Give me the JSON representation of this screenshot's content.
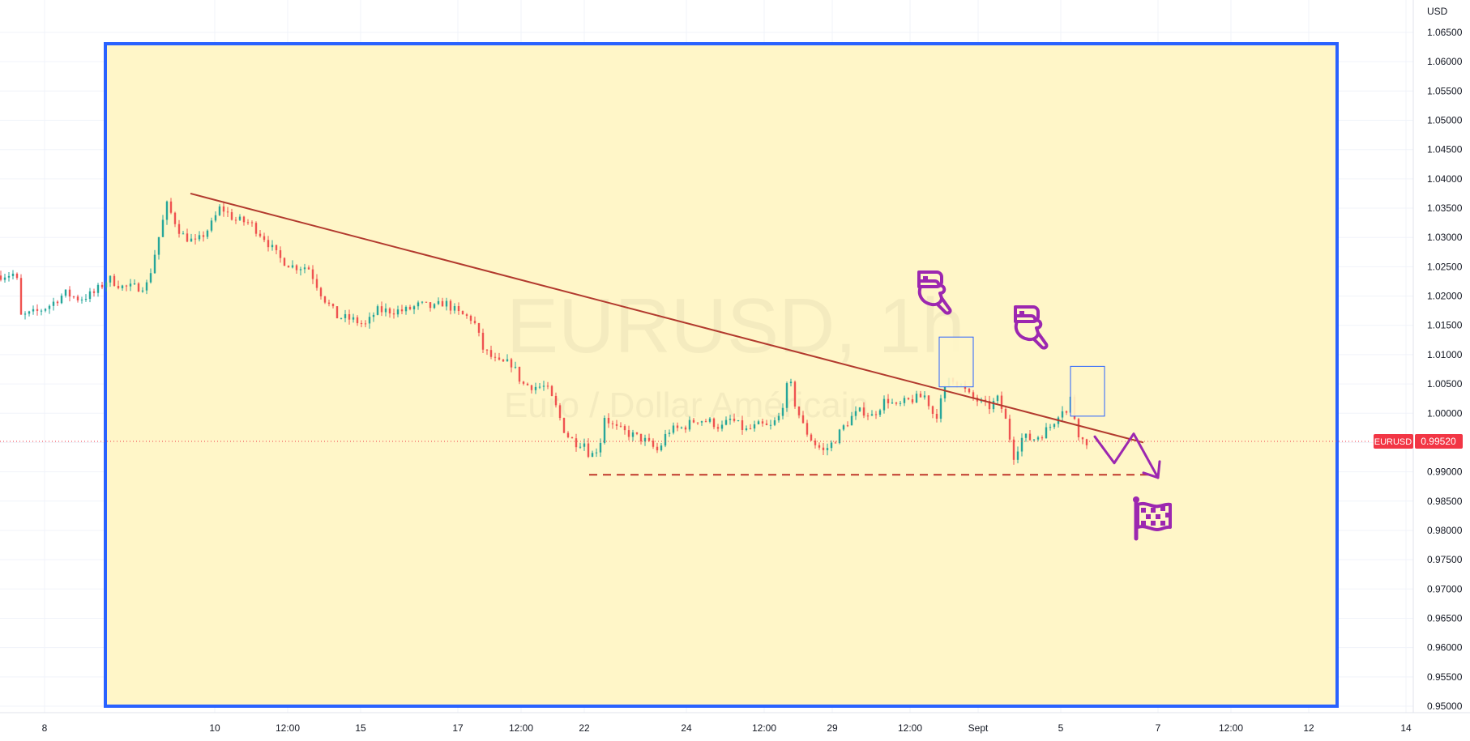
{
  "chart_data": {
    "type": "candlestick",
    "symbol": "EURUSD",
    "interval": "1h",
    "watermark": {
      "symbol_interval": "EURUSD, 1h",
      "description": "Euro / Dollar Américain"
    },
    "currency": "USD",
    "price_axis": {
      "ylim": [
        0.9475,
        1.0675
      ],
      "ticks": [
        "1.06500",
        "1.06000",
        "1.05500",
        "1.05000",
        "1.04500",
        "1.04000",
        "1.03500",
        "1.03000",
        "1.02500",
        "1.02000",
        "1.01500",
        "1.01000",
        "1.00500",
        "1.00000",
        "0.99500",
        "0.99000",
        "0.98500",
        "0.98000",
        "0.97500",
        "0.97000",
        "0.96500",
        "0.96000",
        "0.95500",
        "0.95000"
      ],
      "tick_values": [
        1.065,
        1.06,
        1.055,
        1.05,
        1.045,
        1.04,
        1.035,
        1.03,
        1.025,
        1.02,
        1.015,
        1.01,
        1.005,
        1.0,
        0.995,
        0.99,
        0.985,
        0.98,
        0.975,
        0.97,
        0.965,
        0.96,
        0.955,
        0.95
      ]
    },
    "time_axis": {
      "xlim": [
        7.55,
        14.1
      ],
      "ticks": [
        {
          "label": "8",
          "t": 8.0
        },
        {
          "label": "10",
          "t": 9.75
        },
        {
          "label": "12:00",
          "t": 10.5
        },
        {
          "label": "15",
          "t": 11.25
        },
        {
          "label": "17",
          "t": 12.25
        },
        {
          "label": "12:00",
          "t": 12.9
        },
        {
          "label": "22",
          "t": 13.55
        },
        {
          "label": "24",
          "t": 14.6
        },
        {
          "label": "12:00",
          "t": 15.4
        },
        {
          "label": "29",
          "t": 16.1
        },
        {
          "label": "12:00",
          "t": 16.9
        },
        {
          "label": "Sept",
          "t": 17.6
        },
        {
          "label": "5",
          "t": 18.45
        },
        {
          "label": "7",
          "t": 19.45
        },
        {
          "label": "12:00",
          "t": 20.2
        },
        {
          "label": "12",
          "t": 21.0
        },
        {
          "label": "14",
          "t": 22.0
        }
      ]
    },
    "last_price": {
      "label": "EURUSD",
      "value": "0.99520",
      "price": 0.9952
    },
    "price_path": [
      [
        7.55,
        1.0235
      ],
      [
        7.75,
        1.0238
      ],
      [
        7.8,
        1.0165
      ],
      [
        7.95,
        1.0172
      ],
      [
        8.1,
        1.0185
      ],
      [
        8.25,
        1.0205
      ],
      [
        8.4,
        1.0195
      ],
      [
        8.55,
        1.0205
      ],
      [
        8.7,
        1.023
      ],
      [
        8.85,
        1.0215
      ],
      [
        9.0,
        1.0215
      ],
      [
        9.1,
        1.022
      ],
      [
        9.2,
        1.029
      ],
      [
        9.3,
        1.0355
      ],
      [
        9.45,
        1.0305
      ],
      [
        9.6,
        1.029
      ],
      [
        9.75,
        1.032
      ],
      [
        9.85,
        1.0352
      ],
      [
        10.0,
        1.033
      ],
      [
        10.15,
        1.0325
      ],
      [
        10.3,
        1.03
      ],
      [
        10.45,
        1.0265
      ],
      [
        10.6,
        1.025
      ],
      [
        10.75,
        1.025
      ],
      [
        10.9,
        1.02
      ],
      [
        11.05,
        1.0165
      ],
      [
        11.2,
        1.016
      ],
      [
        11.35,
        1.015
      ],
      [
        11.45,
        1.0175
      ],
      [
        11.6,
        1.0175
      ],
      [
        11.75,
        1.0175
      ],
      [
        11.9,
        1.0185
      ],
      [
        12.05,
        1.018
      ],
      [
        12.15,
        1.019
      ],
      [
        12.3,
        1.017
      ],
      [
        12.45,
        1.016
      ],
      [
        12.55,
        1.011
      ],
      [
        12.7,
        1.0085
      ],
      [
        12.85,
        1.0085
      ],
      [
        12.95,
        1.005
      ],
      [
        13.1,
        1.0045
      ],
      [
        13.2,
        1.0045
      ],
      [
        13.3,
        1.001
      ],
      [
        13.4,
        0.9965
      ],
      [
        13.5,
        0.995
      ],
      [
        13.6,
        0.995
      ],
      [
        13.65,
        0.9925
      ],
      [
        13.75,
        0.9945
      ],
      [
        13.8,
        0.9995
      ],
      [
        13.9,
        0.9975
      ],
      [
        14.05,
        0.9965
      ],
      [
        14.2,
        0.9955
      ],
      [
        14.35,
        0.9935
      ],
      [
        14.45,
        0.997
      ],
      [
        14.6,
        0.9975
      ],
      [
        14.75,
        0.999
      ],
      [
        14.9,
        0.9985
      ],
      [
        15.0,
        0.9975
      ],
      [
        15.1,
        0.999
      ],
      [
        15.25,
        0.997
      ],
      [
        15.4,
        0.998
      ],
      [
        15.5,
        0.9975
      ],
      [
        15.6,
        0.9995
      ],
      [
        15.7,
        1.006
      ],
      [
        15.75,
        1.002
      ],
      [
        15.85,
        0.9975
      ],
      [
        15.95,
        0.995
      ],
      [
        16.05,
        0.9935
      ],
      [
        16.15,
        0.995
      ],
      [
        16.25,
        0.9975
      ],
      [
        16.35,
        0.9995
      ],
      [
        16.45,
        1.0005
      ],
      [
        16.55,
        0.9995
      ],
      [
        16.7,
        1.0025
      ],
      [
        16.8,
        1.001
      ],
      [
        16.9,
        1.002
      ],
      [
        17.0,
        1.0025
      ],
      [
        17.1,
        1.003
      ],
      [
        17.2,
        0.999
      ],
      [
        17.3,
        1.004
      ],
      [
        17.35,
        1.0065
      ],
      [
        17.45,
        1.005
      ],
      [
        17.55,
        1.003
      ],
      [
        17.65,
        1.002
      ],
      [
        17.75,
        1.001
      ],
      [
        17.85,
        1.0025
      ],
      [
        17.95,
        0.9975
      ],
      [
        18.0,
        0.9925
      ],
      [
        18.1,
        0.996
      ],
      [
        18.2,
        0.9955
      ],
      [
        18.3,
        0.9965
      ],
      [
        18.4,
        0.998
      ],
      [
        18.5,
        1.001
      ],
      [
        18.55,
        1.0
      ],
      [
        18.6,
        1.003
      ],
      [
        18.65,
        0.9975
      ],
      [
        18.72,
        0.9952
      ]
    ],
    "annotations": {
      "trendline": {
        "from": [
          9.5,
          1.0375
        ],
        "to": [
          19.3,
          0.995
        ]
      },
      "support_level": {
        "price": 0.9895,
        "from": 13.6,
        "to": 19.4
      },
      "highlight_boxes": [
        {
          "from": 17.2,
          "to": 17.55,
          "low": 1.0045,
          "high": 1.013
        },
        {
          "from": 18.55,
          "to": 18.9,
          "low": 0.9995,
          "high": 1.008
        }
      ],
      "projection_path": [
        [
          18.8,
          0.996
        ],
        [
          19.0,
          0.9915
        ],
        [
          19.2,
          0.9965
        ],
        [
          19.45,
          0.989
        ]
      ],
      "icons": [
        "hand-pointing-down-icon",
        "hand-pointing-down-icon",
        "checkered-flag-icon"
      ]
    },
    "colors": {
      "bull": "#26a69a",
      "bear": "#ef5350",
      "trendline": "#b23a2e",
      "support": "#c0392b",
      "highlight_fill": "#fff6c8",
      "frame": "#2962ff",
      "annotation": "#9c27b0",
      "last_price": "#f23645"
    }
  }
}
